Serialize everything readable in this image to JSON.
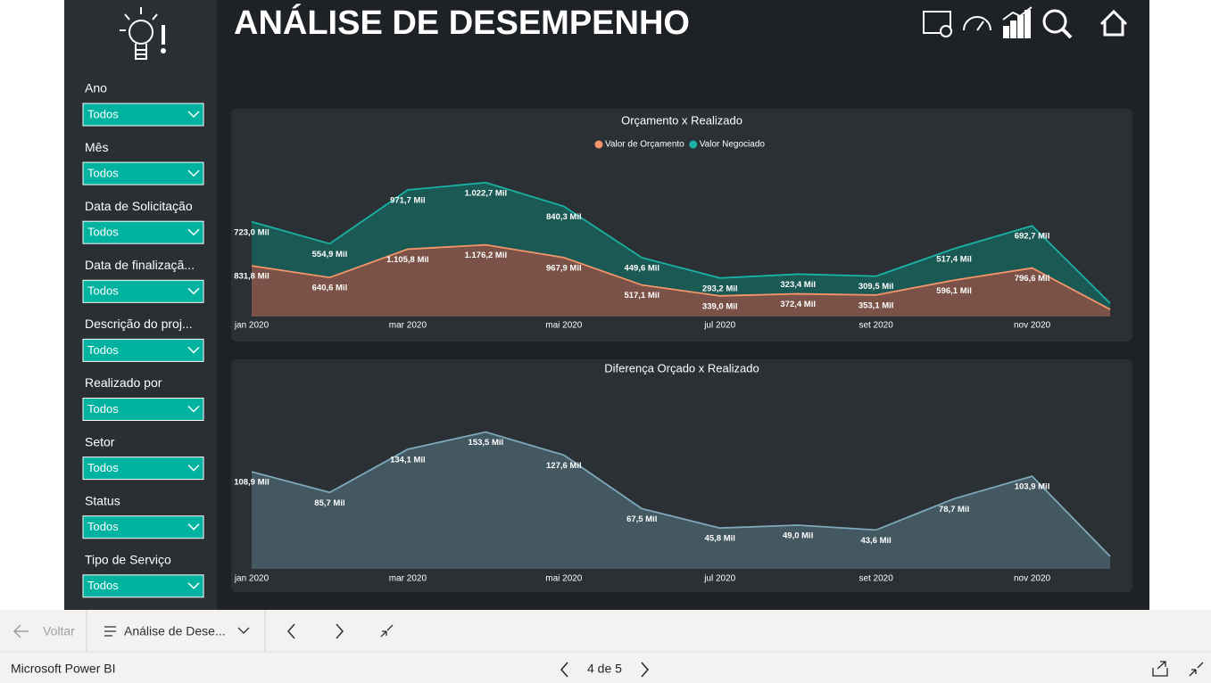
{
  "header": {
    "title": "ANÁLISE DE DESEMPENHO"
  },
  "filters": [
    {
      "label": "Ano",
      "value": "Todos"
    },
    {
      "label": "Mês",
      "value": "Todos"
    },
    {
      "label": "Data de Solicitação",
      "value": "Todos"
    },
    {
      "label": "Data de finalizaçã...",
      "value": "Todos"
    },
    {
      "label": "Descrição do proj...",
      "value": "Todos"
    },
    {
      "label": "Realizado por",
      "value": "Todos"
    },
    {
      "label": "Setor",
      "value": "Todos"
    },
    {
      "label": "Status",
      "value": "Todos"
    },
    {
      "label": "Tipo de Serviço",
      "value": "Todos"
    }
  ],
  "chart_data": [
    {
      "type": "area",
      "stacked": true,
      "title": "Orçamento x Realizado",
      "categories": [
        "jan 2020",
        null,
        "mar 2020",
        null,
        "mai 2020",
        null,
        "jul 2020",
        null,
        "set 2020",
        null,
        "nov 2020",
        null
      ],
      "ylim": [
        0,
        2400
      ],
      "series": [
        {
          "name": "Valor de Orçamento",
          "color": "#f4956a",
          "fill": "#7a5247",
          "values": [
            831.8,
            640.6,
            1105.8,
            1176.2,
            967.9,
            517.1,
            339.0,
            372.4,
            353.1,
            596.1,
            796.6,
            116
          ],
          "value_labels": [
            "831,8 Mil",
            "640,6 Mil",
            "1.105,8 Mil",
            "1.176,2 Mil",
            "967,9 Mil",
            "517,1 Mil",
            "339,0 Mil",
            "372,4 Mil",
            "353,1 Mil",
            "596,1 Mil",
            "796,6 Mil",
            null
          ]
        },
        {
          "name": "Valor Negociado",
          "color": "#19b3a5",
          "fill": "#1b5955",
          "values": [
            723.0,
            554.9,
            971.7,
            1022.7,
            840.3,
            449.6,
            293.2,
            323.4,
            309.5,
            517.4,
            692.7,
            102
          ],
          "value_labels": [
            "723,0 Mil",
            "554,9 Mil",
            "971,7 Mil",
            "1.022,7 Mil",
            "840,3 Mil",
            "449,6 Mil",
            "293,2 Mil",
            "323,4 Mil",
            "309,5 Mil",
            "517,4 Mil",
            "692,7 Mil",
            null
          ]
        }
      ]
    },
    {
      "type": "area",
      "title": "Diferença Orçado x Realizado",
      "categories": [
        "jan 2020",
        null,
        "mar 2020",
        null,
        "mai 2020",
        null,
        "jul 2020",
        null,
        "set 2020",
        null,
        "nov 2020",
        null
      ],
      "ylim": [
        0,
        170
      ],
      "series": [
        {
          "color": "#7ea8bb",
          "fill": "#435861",
          "values": [
            108.9,
            85.7,
            134.1,
            153.5,
            127.6,
            67.5,
            45.8,
            49.0,
            43.6,
            78.7,
            103.9,
            14
          ],
          "value_labels": [
            "108,9 Mil",
            "85,7 Mil",
            "134,1 Mil",
            "153,5 Mil",
            "127,6 Mil",
            "67,5 Mil",
            "45,8 Mil",
            "49,0 Mil",
            "43,6 Mil",
            "78,7 Mil",
            "103,9 Mil",
            null
          ]
        }
      ]
    }
  ],
  "nav": {
    "back": "Voltar",
    "page": "Análise de Dese..."
  },
  "footer": {
    "app": "Microsoft Power BI",
    "pager": "4 de 5"
  }
}
